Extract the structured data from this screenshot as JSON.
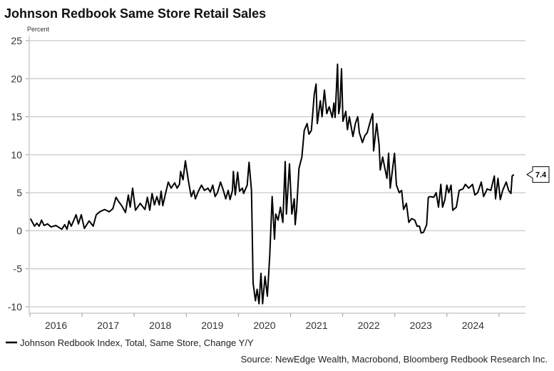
{
  "chart_data": {
    "type": "line",
    "title": "Johnson Redbook Same Store Retail Sales",
    "ylabel": "Percent",
    "xlabel": "",
    "ylim": [
      -10,
      25
    ],
    "xlim": [
      2016,
      2025.5
    ],
    "yticks": [
      25,
      20,
      15,
      10,
      5,
      0,
      -5,
      -10
    ],
    "xtick_labels": [
      "2016",
      "2017",
      "2018",
      "2019",
      "2020",
      "2021",
      "2022",
      "2023",
      "2024"
    ],
    "grid": true,
    "legend_position": "bottom-left",
    "series": [
      {
        "name": "Johnson Redbook Index, Total, Same Store, Change Y/Y",
        "color": "#000000",
        "last_value_label": "7.4",
        "points": [
          [
            2016.01,
            1.6
          ],
          [
            2016.087,
            0.6
          ],
          [
            2016.132,
            1.0
          ],
          [
            2016.178,
            0.6
          ],
          [
            2016.223,
            1.4
          ],
          [
            2016.269,
            0.7
          ],
          [
            2016.337,
            0.9
          ],
          [
            2016.406,
            0.5
          ],
          [
            2016.497,
            0.7
          ],
          [
            2016.611,
            0.2
          ],
          [
            2016.666,
            0.8
          ],
          [
            2016.711,
            0.2
          ],
          [
            2016.748,
            1.3
          ],
          [
            2016.793,
            0.6
          ],
          [
            2016.885,
            2.1
          ],
          [
            2016.93,
            0.9
          ],
          [
            2016.985,
            2.1
          ],
          [
            2017.044,
            0.3
          ],
          [
            2017.135,
            1.3
          ],
          [
            2017.213,
            0.6
          ],
          [
            2017.272,
            2.1
          ],
          [
            2017.341,
            2.5
          ],
          [
            2017.432,
            2.8
          ],
          [
            2017.523,
            2.5
          ],
          [
            2017.591,
            2.9
          ],
          [
            2017.651,
            4.4
          ],
          [
            2017.705,
            3.8
          ],
          [
            2017.76,
            3.3
          ],
          [
            2017.833,
            2.4
          ],
          [
            2017.888,
            4.7
          ],
          [
            2017.924,
            3.1
          ],
          [
            2017.97,
            5.6
          ],
          [
            2018.025,
            2.7
          ],
          [
            2018.116,
            3.6
          ],
          [
            2018.207,
            2.8
          ],
          [
            2018.253,
            4.4
          ],
          [
            2018.298,
            2.7
          ],
          [
            2018.344,
            4.9
          ],
          [
            2018.389,
            3.4
          ],
          [
            2018.435,
            4.5
          ],
          [
            2018.481,
            3.4
          ],
          [
            2018.517,
            5.2
          ],
          [
            2018.549,
            3.3
          ],
          [
            2018.595,
            4.7
          ],
          [
            2018.654,
            6.4
          ],
          [
            2018.709,
            5.6
          ],
          [
            2018.777,
            6.3
          ],
          [
            2018.823,
            5.6
          ],
          [
            2018.868,
            6.1
          ],
          [
            2018.891,
            7.8
          ],
          [
            2018.937,
            6.7
          ],
          [
            2018.982,
            9.2
          ],
          [
            2019.037,
            6.7
          ],
          [
            2019.073,
            5.3
          ],
          [
            2019.096,
            4.5
          ],
          [
            2019.142,
            5.3
          ],
          [
            2019.174,
            4.2
          ],
          [
            2019.233,
            5.2
          ],
          [
            2019.292,
            6.0
          ],
          [
            2019.347,
            5.3
          ],
          [
            2019.415,
            5.6
          ],
          [
            2019.461,
            5.1
          ],
          [
            2019.507,
            6.0
          ],
          [
            2019.552,
            4.5
          ],
          [
            2019.598,
            5.0
          ],
          [
            2019.657,
            6.4
          ],
          [
            2019.712,
            5.3
          ],
          [
            2019.757,
            4.2
          ],
          [
            2019.803,
            5.3
          ],
          [
            2019.84,
            4.1
          ],
          [
            2019.885,
            5.3
          ],
          [
            2019.903,
            7.8
          ],
          [
            2019.94,
            4.7
          ],
          [
            2019.985,
            7.7
          ],
          [
            2020.022,
            5.2
          ],
          [
            2020.077,
            5.6
          ],
          [
            2020.099,
            4.9
          ],
          [
            2020.168,
            6.0
          ],
          [
            2020.204,
            9.0
          ],
          [
            2020.25,
            5.3
          ],
          [
            2020.282,
            -6.9
          ],
          [
            2020.327,
            -9.2
          ],
          [
            2020.359,
            -7.7
          ],
          [
            2020.396,
            -9.6
          ],
          [
            2020.432,
            -5.6
          ],
          [
            2020.464,
            -9.6
          ],
          [
            2020.51,
            -6.0
          ],
          [
            2020.555,
            -8.6
          ],
          [
            2020.601,
            -3.3
          ],
          [
            2020.647,
            4.5
          ],
          [
            2020.692,
            -1.1
          ],
          [
            2020.715,
            2.2
          ],
          [
            2020.761,
            1.4
          ],
          [
            2020.806,
            3.1
          ],
          [
            2020.852,
            1.1
          ],
          [
            2020.897,
            9.1
          ],
          [
            2020.92,
            2.2
          ],
          [
            2020.98,
            8.8
          ],
          [
            2021.025,
            2.2
          ],
          [
            2021.071,
            4.2
          ],
          [
            2021.089,
            0.8
          ],
          [
            2021.116,
            2.8
          ],
          [
            2021.162,
            8.2
          ],
          [
            2021.217,
            9.7
          ],
          [
            2021.262,
            13.2
          ],
          [
            2021.317,
            14.1
          ],
          [
            2021.353,
            12.7
          ],
          [
            2021.399,
            13.2
          ],
          [
            2021.454,
            17.9
          ],
          [
            2021.49,
            19.3
          ],
          [
            2021.513,
            14.1
          ],
          [
            2021.572,
            17.1
          ],
          [
            2021.604,
            15.0
          ],
          [
            2021.65,
            18.5
          ],
          [
            2021.695,
            15.4
          ],
          [
            2021.741,
            16.3
          ],
          [
            2021.8,
            14.9
          ],
          [
            2021.832,
            16.8
          ],
          [
            2021.855,
            14.9
          ],
          [
            2021.901,
            21.9
          ],
          [
            2021.923,
            15.4
          ],
          [
            2021.946,
            16.3
          ],
          [
            2021.978,
            21.3
          ],
          [
            2022.005,
            14.4
          ],
          [
            2022.06,
            15.7
          ],
          [
            2022.092,
            13.3
          ],
          [
            2022.129,
            15.0
          ],
          [
            2022.197,
            12.4
          ],
          [
            2022.243,
            14.1
          ],
          [
            2022.288,
            15.0
          ],
          [
            2022.32,
            12.9
          ],
          [
            2022.379,
            11.6
          ],
          [
            2022.425,
            12.5
          ],
          [
            2022.471,
            12.9
          ],
          [
            2022.539,
            14.6
          ],
          [
            2022.576,
            15.4
          ],
          [
            2022.594,
            10.5
          ],
          [
            2022.653,
            14.1
          ],
          [
            2022.699,
            11.3
          ],
          [
            2022.721,
            8.0
          ],
          [
            2022.767,
            9.7
          ],
          [
            2022.813,
            8.1
          ],
          [
            2022.849,
            6.9
          ],
          [
            2022.881,
            10.2
          ],
          [
            2022.913,
            5.6
          ],
          [
            2022.995,
            10.2
          ],
          [
            2023.032,
            6.0
          ],
          [
            2023.086,
            5.0
          ],
          [
            2023.132,
            5.3
          ],
          [
            2023.168,
            2.8
          ],
          [
            2023.223,
            3.6
          ],
          [
            2023.269,
            1.1
          ],
          [
            2023.323,
            1.6
          ],
          [
            2023.383,
            1.4
          ],
          [
            2023.428,
            0.6
          ],
          [
            2023.474,
            0.6
          ],
          [
            2023.506,
            -0.3
          ],
          [
            2023.551,
            -0.2
          ],
          [
            2023.611,
            0.8
          ],
          [
            2023.643,
            4.4
          ],
          [
            2023.679,
            4.5
          ],
          [
            2023.747,
            4.4
          ],
          [
            2023.793,
            5.0
          ],
          [
            2023.839,
            3.1
          ],
          [
            2023.884,
            6.1
          ],
          [
            2023.916,
            3.1
          ],
          [
            2023.962,
            4.1
          ],
          [
            2023.998,
            6.0
          ],
          [
            2024.035,
            5.0
          ],
          [
            2024.08,
            6.0
          ],
          [
            2024.112,
            2.7
          ],
          [
            2024.181,
            3.1
          ],
          [
            2024.235,
            5.3
          ],
          [
            2024.308,
            5.5
          ],
          [
            2024.354,
            6.1
          ],
          [
            2024.418,
            5.6
          ],
          [
            2024.491,
            6.1
          ],
          [
            2024.536,
            4.7
          ],
          [
            2024.591,
            5.0
          ],
          [
            2024.659,
            6.4
          ],
          [
            2024.705,
            4.5
          ],
          [
            2024.773,
            5.5
          ],
          [
            2024.842,
            5.3
          ],
          [
            2024.91,
            7.2
          ],
          [
            2024.933,
            4.2
          ],
          [
            2024.979,
            6.9
          ],
          [
            2025.024,
            4.1
          ],
          [
            2025.07,
            5.3
          ],
          [
            2025.138,
            6.4
          ],
          [
            2025.184,
            5.3
          ],
          [
            2025.229,
            4.9
          ],
          [
            2025.252,
            7.2
          ],
          [
            2025.284,
            7.4
          ]
        ]
      }
    ],
    "source": "Source: NewEdge Wealth, Macrobond, Bloomberg Redbook Research Inc."
  }
}
